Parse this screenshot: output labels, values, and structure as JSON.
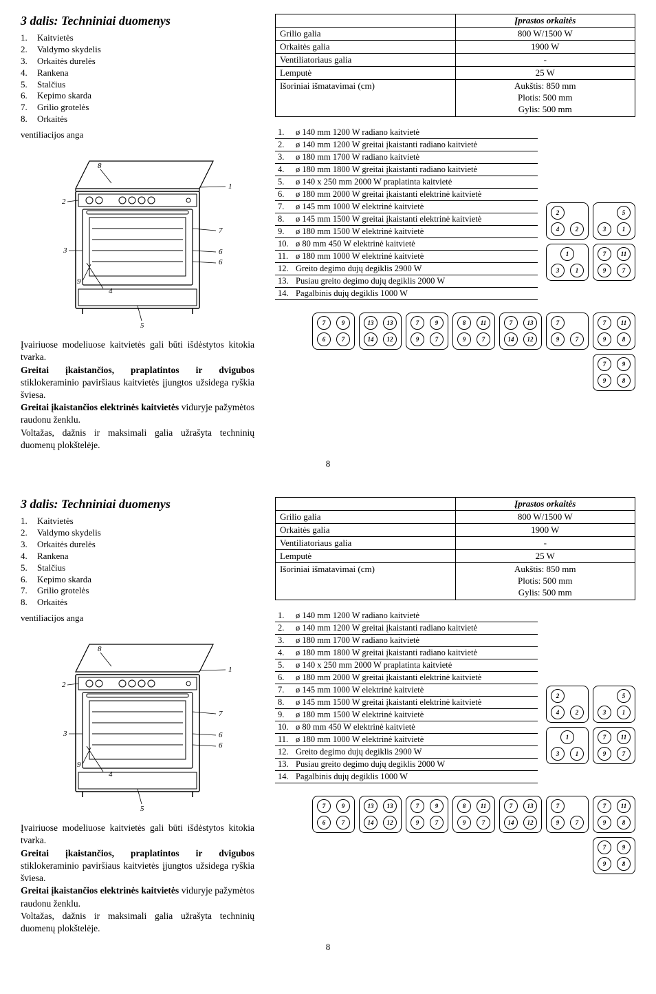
{
  "section_title": "3 dalis: Techniniai duomenys",
  "parts": [
    "Kaitvietės",
    "Valdymo skydelis",
    "Orkaitės durelės",
    "Rankena",
    "Stalčius",
    "Kepimo skarda",
    "Grilio grotelės",
    "Orkaitės"
  ],
  "vent_label": "ventiliacijos anga",
  "body_text_parts": {
    "p1": "Įvairiuose modeliuose kaitvietės gali būti išdėstytos kitokia tvarka.",
    "b1": "Greitai įkaistančios, praplatintos ir dvigubos",
    "p2": " stiklokeraminio paviršiaus kaitvietės įjungtos užsidega ryškia šviesa.",
    "b2": "Greitai įkaistančios elektrinės kaitvietės",
    "p3": " viduryje pažymėtos raudonu ženklu.",
    "p4": "Voltažas, dažnis ir maksimali galia užrašyta techninių duomenų plokštelėje."
  },
  "spec_header_col2": "Įprastos orkaitės",
  "spec_rows": [
    {
      "label": "Grilio galia",
      "value": "800 W/1500 W"
    },
    {
      "label": "Orkaitės galia",
      "value": "1900 W"
    },
    {
      "label": "Ventiliatoriaus galia",
      "value": "-"
    },
    {
      "label": "Lemputė",
      "value": "25 W"
    }
  ],
  "dim_label": "Išoriniai išmatavimai (cm)",
  "dim_values": [
    "Aukštis: 850 mm",
    "Plotis: 500 mm",
    "Gylis: 500 mm"
  ],
  "hob_rows": [
    "ø 140 mm 1200 W radiano kaitvietė",
    "ø 140 mm  1200 W greitai įkaistanti radiano kaitvietė",
    "ø 180 mm  1700 W radiano kaitvietė",
    "ø 180 mm  1800 W greitai įkaistanti radiano kaitvietė",
    "ø 140 x 250 mm  2000 W praplatinta kaitvietė",
    "ø 180 mm 2000 W greitai įkaistanti elektrinė kaitvietė",
    "ø 145 mm 1000 W elektrinė kaitvietė",
    "ø 145 mm 1500 W greitai įkaistanti elektrinė kaitvietė",
    "ø 180 mm 1500 W elektrinė kaitvietė",
    "ø 80 mm 450 W elektrinė kaitvietė",
    "ø 180 mm 1000 W elektrinė kaitvietė",
    "Greito degimo dujų degiklis 2900 W",
    "Pusiau greito degimo dujų degiklis 2000 W",
    "Pagalbinis dujų degiklis 1000 W"
  ],
  "side_layouts": [
    {
      "tl": "2",
      "tr": "",
      "bl": "4",
      "br": "2"
    },
    {
      "tl": "",
      "tr": "5",
      "bl": "3",
      "br": "1"
    },
    {
      "tc": "1",
      "bl": "3",
      "br": "1"
    },
    {
      "tl": "7",
      "tr": "11",
      "bl": "9",
      "br": "7"
    }
  ],
  "bottom_layouts": [
    {
      "tl": "7",
      "tr": "9",
      "bl": "6",
      "br": "7"
    },
    {
      "tl": "13",
      "tr": "13",
      "bl": "14",
      "br": "12"
    },
    {
      "tl": "7",
      "tr": "9",
      "bl": "9",
      "br": "7"
    },
    {
      "tl": "8",
      "tr": "11",
      "bl": "9",
      "br": "7"
    },
    {
      "tl": "7",
      "tr": "13",
      "bl": "14",
      "br": "12"
    },
    {
      "tl": "7",
      "tr": "",
      "bl": "9",
      "br": "7"
    },
    {
      "tl": "7",
      "tr": "11",
      "bl": "9",
      "br": "8"
    },
    {
      "tl": "7",
      "tr": "9",
      "bl": "9",
      "br": "8"
    }
  ],
  "page_num": "8",
  "diagram_labels": [
    "1",
    "2",
    "3",
    "4",
    "5",
    "6",
    "7",
    "8",
    "9"
  ]
}
